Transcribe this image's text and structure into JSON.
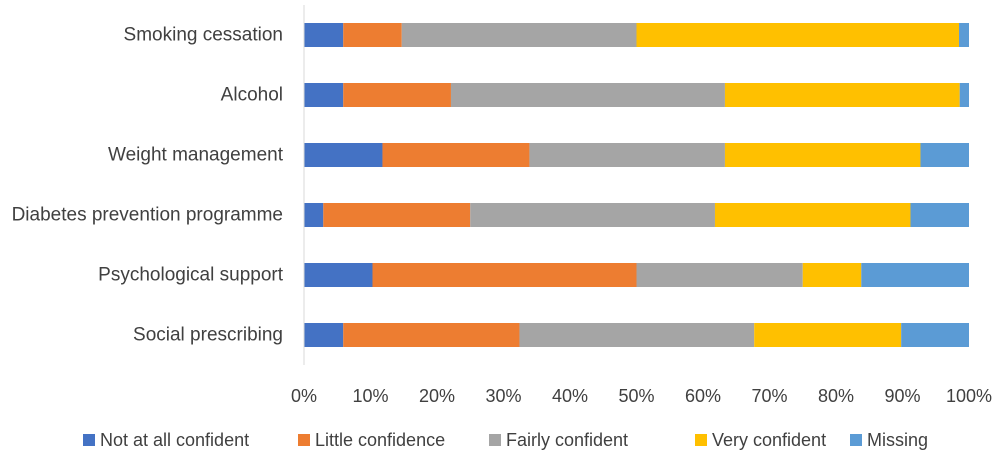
{
  "chart_data": {
    "type": "bar",
    "orientation": "horizontal",
    "stacked": true,
    "categories": [
      "Smoking cessation",
      "Alcohol",
      "Weight management",
      "Diabetes prevention programme",
      "Psychological support",
      "Social prescribing"
    ],
    "series": [
      {
        "name": "Not at all confident",
        "color": "#4472C4",
        "values": [
          5.9,
          5.9,
          11.8,
          2.9,
          10.3,
          5.9
        ]
      },
      {
        "name": "Little confidence",
        "color": "#ED7D31",
        "values": [
          8.8,
          16.2,
          22.1,
          22.1,
          39.7,
          26.5
        ]
      },
      {
        "name": "Fairly confident",
        "color": "#A5A5A5",
        "values": [
          35.3,
          41.2,
          29.4,
          36.8,
          25.0,
          35.3
        ]
      },
      {
        "name": "Very confident",
        "color": "#FFC000",
        "values": [
          48.5,
          35.3,
          29.4,
          29.4,
          8.8,
          22.1
        ]
      },
      {
        "name": "Missing",
        "color": "#5B9BD5",
        "values": [
          1.5,
          1.4,
          7.3,
          8.8,
          16.2,
          10.2
        ]
      }
    ],
    "xlim": [
      0,
      100
    ],
    "xticks": [
      "0%",
      "10%",
      "20%",
      "30%",
      "40%",
      "50%",
      "60%",
      "70%",
      "80%",
      "90%",
      "100%"
    ],
    "grid": false,
    "legend_position": "bottom",
    "title": "",
    "xlabel": "",
    "ylabel": ""
  }
}
